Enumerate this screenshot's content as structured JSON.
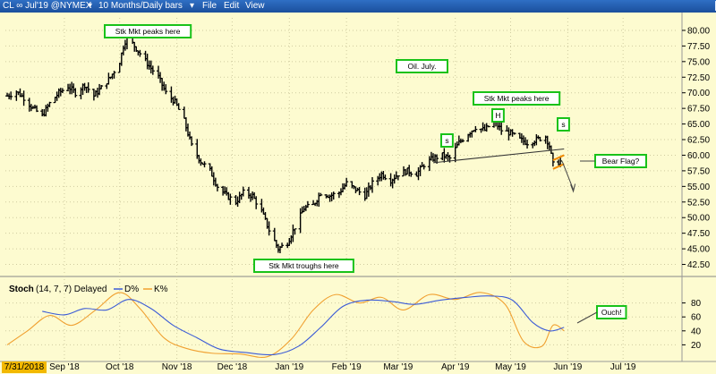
{
  "window": {
    "title": "CL ∞ Jul'19 @NYMEX",
    "period_label": "10 Months/Daily bars",
    "menus": [
      "File",
      "Edit",
      "View"
    ],
    "buttons": [
      "_",
      "□",
      "X"
    ]
  },
  "cursor_date": "7/31/2018",
  "stoch_label": "Stoch",
  "stoch_params": "(14, 7, 7)",
  "stoch_mode": "Delayed",
  "stoch_legend": [
    "D%",
    "K%"
  ],
  "annotations": [
    {
      "id": "stk-peak-1",
      "text": "Stk Mkt peaks here"
    },
    {
      "id": "oil-july",
      "text": "Oil. July."
    },
    {
      "id": "stk-peak-2",
      "text": "Stk Mkt peaks here"
    },
    {
      "id": "shoulder-left",
      "text": "s"
    },
    {
      "id": "head",
      "text": "H"
    },
    {
      "id": "shoulder-right",
      "text": "s"
    },
    {
      "id": "bear-flag",
      "text": "Bear Flag?"
    },
    {
      "id": "stk-trough",
      "text": "Stk Mkt  troughs here"
    },
    {
      "id": "ouch",
      "text": "Ouch!"
    }
  ],
  "colors": {
    "background": "#fdfbd0",
    "bars": "#000000",
    "annotation_border": "#19c219",
    "d_line": "#3b5bd6",
    "k_line": "#f0a030",
    "flag": "#f08a00",
    "date_highlight": "#f2b800"
  },
  "chart_data": {
    "type": "bar",
    "x_ticks": [
      "Sep '18",
      "Oct '18",
      "Nov '18",
      "Dec '18",
      "Jan '19",
      "Feb '19",
      "Mar '19",
      "Apr '19",
      "May '19",
      "Jun '19",
      "Jul '19"
    ],
    "price_axis": {
      "ticks": [
        "80.00",
        "77.50",
        "75.00",
        "72.50",
        "70.00",
        "67.50",
        "65.00",
        "62.50",
        "60.00",
        "57.50",
        "55.00",
        "52.50",
        "50.00",
        "47.50",
        "45.00",
        "42.50"
      ],
      "ylim": [
        41,
        82
      ]
    },
    "stoch_axis": {
      "ticks": [
        "80",
        "60",
        "40",
        "20"
      ],
      "ylim": [
        0,
        100
      ]
    },
    "price_series": [
      [
        "2018-08-01",
        69.5
      ],
      [
        "2018-08-06",
        70.2
      ],
      [
        "2018-08-10",
        69.2
      ],
      [
        "2018-08-15",
        67.5
      ],
      [
        "2018-08-20",
        66.3
      ],
      [
        "2018-08-24",
        68.3
      ],
      [
        "2018-08-29",
        70.0
      ],
      [
        "2018-09-03",
        71.0
      ],
      [
        "2018-09-07",
        70.0
      ],
      [
        "2018-09-12",
        71.3
      ],
      [
        "2018-09-17",
        69.5
      ],
      [
        "2018-09-21",
        70.8
      ],
      [
        "2018-09-26",
        72.5
      ],
      [
        "2018-10-01",
        75.0
      ],
      [
        "2018-10-03",
        77.5
      ],
      [
        "2018-10-05",
        79.0
      ],
      [
        "2018-10-09",
        77.5
      ],
      [
        "2018-10-12",
        76.3
      ],
      [
        "2018-10-17",
        74.3
      ],
      [
        "2018-10-22",
        72.5
      ],
      [
        "2018-10-26",
        70.0
      ],
      [
        "2018-10-31",
        68.5
      ],
      [
        "2018-11-05",
        65.5
      ],
      [
        "2018-11-09",
        61.5
      ],
      [
        "2018-11-14",
        59.0
      ],
      [
        "2018-11-19",
        57.5
      ],
      [
        "2018-11-23",
        55.0
      ],
      [
        "2018-11-28",
        53.5
      ],
      [
        "2018-12-03",
        52.5
      ],
      [
        "2018-12-07",
        54.0
      ],
      [
        "2018-12-12",
        53.5
      ],
      [
        "2018-12-17",
        51.0
      ],
      [
        "2018-12-21",
        48.0
      ],
      [
        "2018-12-26",
        45.0
      ],
      [
        "2018-12-31",
        46.0
      ],
      [
        "2019-01-04",
        48.5
      ],
      [
        "2019-01-09",
        51.5
      ],
      [
        "2019-01-14",
        52.0
      ],
      [
        "2019-01-18",
        54.0
      ],
      [
        "2019-01-23",
        53.5
      ],
      [
        "2019-01-28",
        54.0
      ],
      [
        "2019-02-01",
        55.5
      ],
      [
        "2019-02-06",
        54.5
      ],
      [
        "2019-02-11",
        53.5
      ],
      [
        "2019-02-15",
        55.5
      ],
      [
        "2019-02-20",
        57.0
      ],
      [
        "2019-02-25",
        56.0
      ],
      [
        "2019-03-01",
        57.0
      ],
      [
        "2019-03-06",
        57.5
      ],
      [
        "2019-03-11",
        57.0
      ],
      [
        "2019-03-15",
        58.5
      ],
      [
        "2019-03-20",
        59.5
      ],
      [
        "2019-03-25",
        60.0
      ],
      [
        "2019-03-29",
        59.5
      ],
      [
        "2019-04-03",
        62.0
      ],
      [
        "2019-04-08",
        63.5
      ],
      [
        "2019-04-12",
        64.5
      ],
      [
        "2019-04-17",
        64.0
      ],
      [
        "2019-04-22",
        65.5
      ],
      [
        "2019-04-26",
        64.0
      ],
      [
        "2019-05-01",
        63.5
      ],
      [
        "2019-05-06",
        62.5
      ],
      [
        "2019-05-10",
        62.0
      ],
      [
        "2019-05-15",
        62.5
      ],
      [
        "2019-05-20",
        63.0
      ],
      [
        "2019-05-22",
        61.5
      ],
      [
        "2019-05-24",
        58.5
      ],
      [
        "2019-05-28",
        59.0
      ]
    ],
    "stoch_series": {
      "D%": [
        [
          "2018-08-20",
          68
        ],
        [
          "2018-09-01",
          63
        ],
        [
          "2018-09-12",
          72
        ],
        [
          "2018-09-24",
          70
        ],
        [
          "2018-10-06",
          85
        ],
        [
          "2018-10-18",
          72
        ],
        [
          "2018-10-30",
          48
        ],
        [
          "2018-11-12",
          30
        ],
        [
          "2018-11-24",
          14
        ],
        [
          "2018-12-08",
          9
        ],
        [
          "2018-12-24",
          6
        ],
        [
          "2019-01-06",
          18
        ],
        [
          "2019-01-18",
          45
        ],
        [
          "2019-01-30",
          75
        ],
        [
          "2019-02-12",
          84
        ],
        [
          "2019-02-26",
          82
        ],
        [
          "2019-03-10",
          78
        ],
        [
          "2019-03-24",
          84
        ],
        [
          "2019-04-07",
          88
        ],
        [
          "2019-04-20",
          90
        ],
        [
          "2019-05-02",
          84
        ],
        [
          "2019-05-13",
          52
        ],
        [
          "2019-05-22",
          40
        ],
        [
          "2019-05-30",
          45
        ]
      ],
      "K%": [
        [
          "2018-08-01",
          20
        ],
        [
          "2018-08-12",
          40
        ],
        [
          "2018-08-24",
          62
        ],
        [
          "2018-09-05",
          48
        ],
        [
          "2018-09-18",
          70
        ],
        [
          "2018-10-01",
          95
        ],
        [
          "2018-10-12",
          72
        ],
        [
          "2018-10-25",
          30
        ],
        [
          "2018-11-06",
          15
        ],
        [
          "2018-11-20",
          8
        ],
        [
          "2018-12-05",
          7
        ],
        [
          "2018-12-20",
          3
        ],
        [
          "2019-01-02",
          28
        ],
        [
          "2019-01-14",
          70
        ],
        [
          "2019-01-26",
          92
        ],
        [
          "2019-02-08",
          80
        ],
        [
          "2019-02-20",
          88
        ],
        [
          "2019-03-04",
          70
        ],
        [
          "2019-03-18",
          92
        ],
        [
          "2019-04-01",
          85
        ],
        [
          "2019-04-15",
          95
        ],
        [
          "2019-04-28",
          78
        ],
        [
          "2019-05-08",
          25
        ],
        [
          "2019-05-18",
          18
        ],
        [
          "2019-05-24",
          48
        ],
        [
          "2019-05-30",
          40
        ]
      ]
    }
  }
}
